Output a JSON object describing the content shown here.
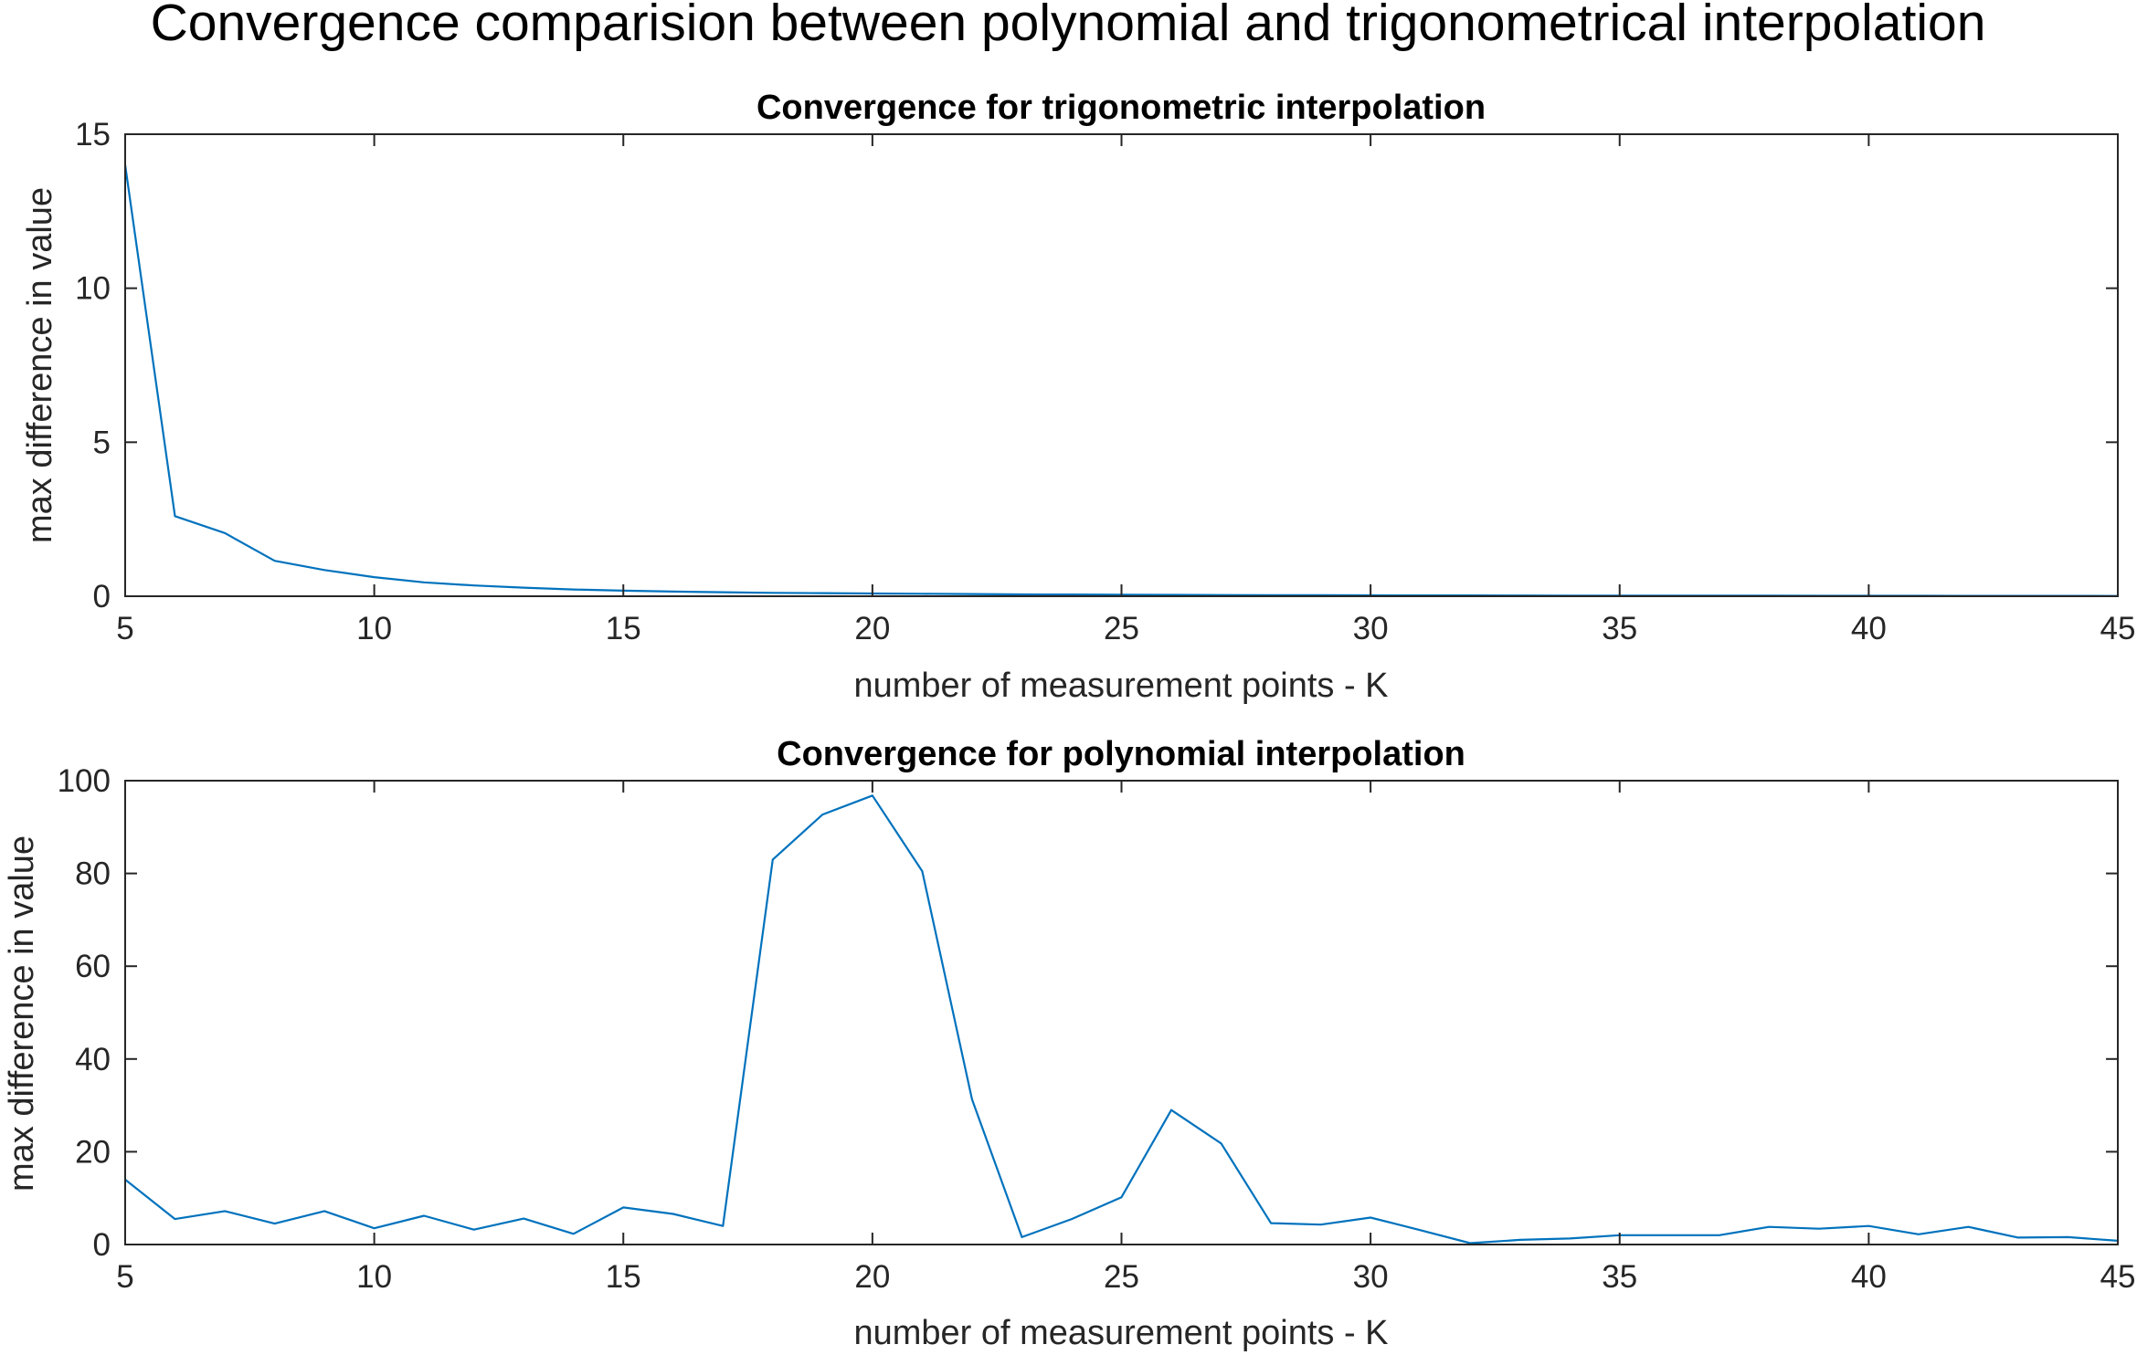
{
  "figure_title": "Convergence comparision between polynomial and trigonometrical interpolation",
  "chart_data": [
    {
      "type": "line",
      "title": "Convergence for trigonometric interpolation",
      "xlabel": "number of measurement points - K",
      "ylabel": "max difference in value",
      "xlim": [
        5,
        45
      ],
      "ylim": [
        0,
        15
      ],
      "xticks": [
        5,
        10,
        15,
        20,
        25,
        30,
        35,
        40,
        45
      ],
      "yticks": [
        0,
        5,
        10,
        15
      ],
      "grid": false,
      "color": "#0072BD",
      "x": [
        5,
        6,
        7,
        8,
        9,
        10,
        11,
        12,
        13,
        14,
        15,
        16,
        17,
        18,
        19,
        20,
        21,
        22,
        23,
        24,
        25,
        26,
        27,
        28,
        29,
        30,
        31,
        32,
        33,
        34,
        35,
        36,
        37,
        38,
        39,
        40,
        41,
        42,
        43,
        44,
        45
      ],
      "y": [
        14.0,
        2.6,
        2.05,
        1.15,
        0.85,
        0.62,
        0.45,
        0.35,
        0.28,
        0.22,
        0.18,
        0.15,
        0.13,
        0.11,
        0.1,
        0.09,
        0.08,
        0.07,
        0.06,
        0.055,
        0.05,
        0.045,
        0.04,
        0.037,
        0.034,
        0.031,
        0.028,
        0.026,
        0.024,
        0.022,
        0.02,
        0.019,
        0.018,
        0.017,
        0.016,
        0.015,
        0.014,
        0.013,
        0.012,
        0.011,
        0.01
      ]
    },
    {
      "type": "line",
      "title": "Convergence for polynomial interpolation",
      "xlabel": "number of measurement points - K",
      "ylabel": "max difference in value",
      "xlim": [
        5,
        45
      ],
      "ylim": [
        0,
        100
      ],
      "xticks": [
        5,
        10,
        15,
        20,
        25,
        30,
        35,
        40,
        45
      ],
      "yticks": [
        0,
        20,
        40,
        60,
        80,
        100
      ],
      "grid": false,
      "color": "#0072BD",
      "x": [
        5,
        6,
        7,
        8,
        9,
        10,
        11,
        12,
        13,
        14,
        15,
        16,
        17,
        18,
        19,
        20,
        21,
        22,
        23,
        24,
        25,
        26,
        27,
        28,
        29,
        30,
        31,
        32,
        33,
        34,
        35,
        36,
        37,
        38,
        39,
        40,
        41,
        42,
        43,
        44,
        45
      ],
      "y": [
        14.0,
        5.5,
        7.2,
        4.5,
        7.2,
        3.5,
        6.2,
        3.2,
        5.6,
        2.3,
        8.0,
        6.6,
        4.0,
        83.0,
        92.7,
        96.8,
        80.5,
        31.3,
        1.6,
        5.5,
        10.2,
        29.0,
        21.8,
        4.6,
        4.3,
        5.8,
        3.1,
        0.3,
        1.0,
        1.3,
        2.0,
        2.0,
        2.0,
        3.8,
        3.4,
        4.0,
        2.2,
        3.8,
        1.5,
        1.6,
        0.8
      ]
    }
  ]
}
